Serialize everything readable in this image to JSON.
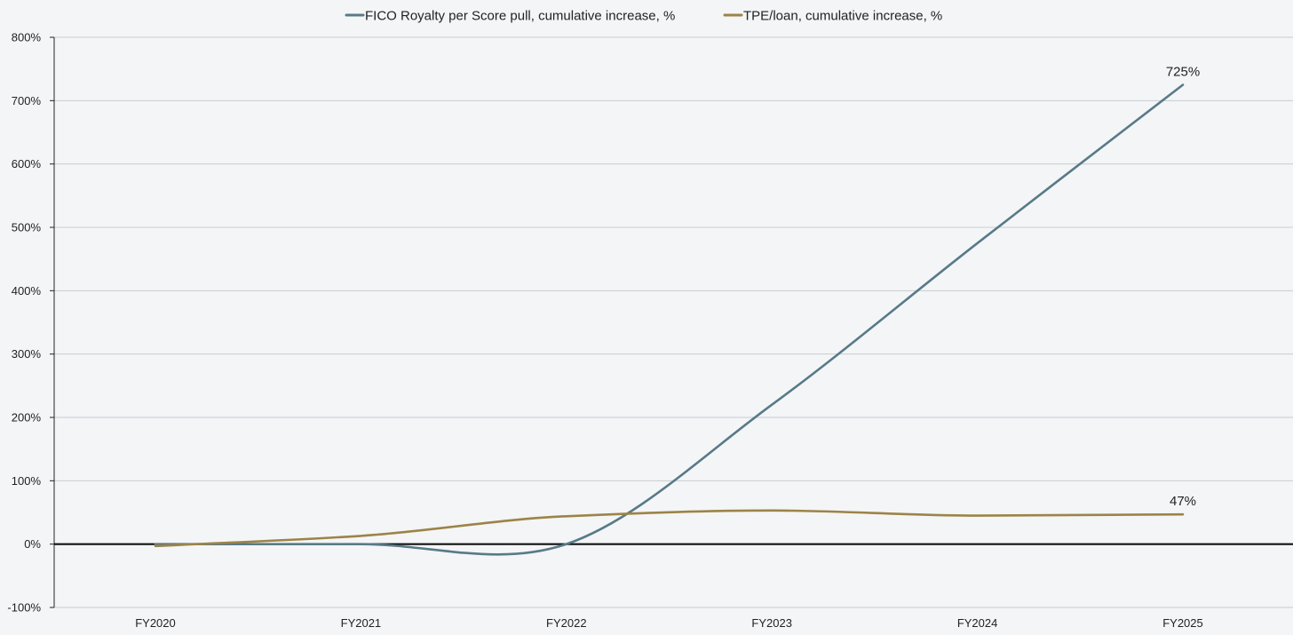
{
  "chart_data": {
    "type": "line",
    "title": "",
    "xlabel": "",
    "ylabel": "",
    "categories": [
      "FY2020",
      "FY2021",
      "FY2022",
      "FY2023",
      "FY2024",
      "FY2025"
    ],
    "ylim": [
      -100,
      800
    ],
    "yticks": [
      -100,
      0,
      100,
      200,
      300,
      400,
      500,
      600,
      700,
      800
    ],
    "ytick_labels": [
      "-100%",
      "0%",
      "100%",
      "200%",
      "300%",
      "400%",
      "500%",
      "600%",
      "700%",
      "800%"
    ],
    "grid": true,
    "legend_position": "top-center",
    "series": [
      {
        "name": "FICO Royalty per Score pull, cumulative increase, %",
        "color": "#587a88",
        "values": [
          0,
          0,
          0,
          220,
          475,
          725
        ],
        "end_label": "725%"
      },
      {
        "name": "TPE/loan, cumulative increase, %",
        "color": "#9c8448",
        "values": [
          -3,
          13,
          44,
          53,
          45,
          47
        ],
        "end_label": "47%"
      }
    ]
  }
}
